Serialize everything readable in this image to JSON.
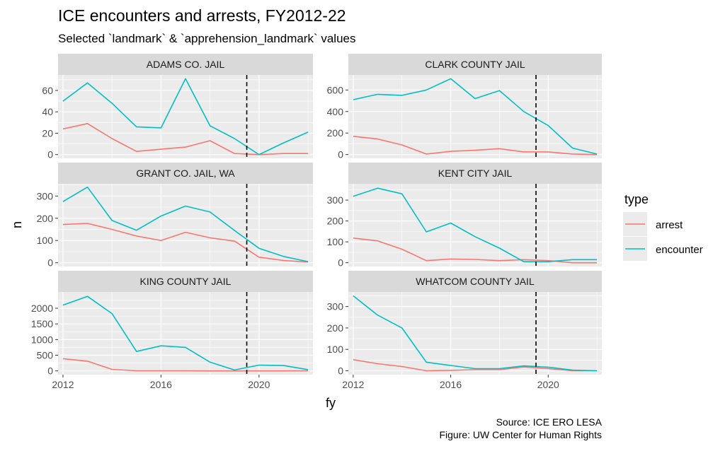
{
  "title": "ICE encounters and arrests, FY2012-22",
  "subtitle": "Selected `landmark` & `apprehension_landmark` values",
  "xlabel": "fy",
  "ylabel": "n",
  "caption": [
    "Source: ICE ERO LESA",
    "Figure: UW Center for Human Rights"
  ],
  "legend": {
    "title": "type",
    "position": "right",
    "items": [
      {
        "label": "arrest",
        "color": "#F8766D"
      },
      {
        "label": "encounter",
        "color": "#00BFC4"
      }
    ]
  },
  "colors": {
    "panel_bg": "#EBEBEB",
    "strip_bg": "#D9D9D9",
    "grid": "#FFFFFF",
    "arrest": "#F8766D",
    "encounter": "#00BFC4"
  },
  "chart_data": {
    "type": "line",
    "facet_layout": "3 rows x 2 columns",
    "grid": true,
    "x": [
      2012,
      2013,
      2014,
      2015,
      2016,
      2017,
      2018,
      2019,
      2020,
      2021,
      2022
    ],
    "x_ticks": [
      2012,
      2016,
      2020
    ],
    "xlim": [
      2011.8,
      2022.2
    ],
    "vline": {
      "x": 2019.5,
      "style": "dashed"
    },
    "panels": [
      {
        "strip": "ADAMS CO. JAIL",
        "ylim": [
          -3.5,
          74.5
        ],
        "y_ticks": [
          0,
          20,
          40,
          60
        ],
        "series": [
          {
            "name": "arrest",
            "values": [
              24,
              29,
              15,
              3,
              5,
              7,
              13,
              1,
              0,
              1,
              1
            ]
          },
          {
            "name": "encounter",
            "values": [
              50,
              67,
              48,
              26,
              25,
              71,
              27,
              15,
              0,
              11,
              21
            ]
          }
        ]
      },
      {
        "strip": "CLARK COUNTY JAIL",
        "ylim": [
          -35,
          740
        ],
        "y_ticks": [
          0,
          200,
          400,
          600
        ],
        "series": [
          {
            "name": "arrest",
            "values": [
              170,
              145,
              90,
              5,
              30,
              40,
              55,
              25,
              25,
              5,
              0
            ]
          },
          {
            "name": "encounter",
            "values": [
              510,
              560,
              550,
              600,
              705,
              520,
              595,
              400,
              270,
              60,
              5
            ]
          }
        ]
      },
      {
        "strip": "GRANT CO. JAIL, WA",
        "ylim": [
          -17,
          355
        ],
        "y_ticks": [
          0,
          100,
          200,
          300
        ],
        "series": [
          {
            "name": "arrest",
            "values": [
              172,
              177,
              150,
              120,
              100,
              137,
              112,
              97,
              25,
              10,
              3
            ]
          },
          {
            "name": "encounter",
            "values": [
              275,
              340,
              190,
              146,
              210,
              255,
              228,
              145,
              65,
              28,
              5
            ]
          }
        ]
      },
      {
        "strip": "KENT CITY JAIL",
        "ylim": [
          -18,
          378
        ],
        "y_ticks": [
          0,
          100,
          200,
          300
        ],
        "series": [
          {
            "name": "arrest",
            "values": [
              118,
              105,
              65,
              10,
              18,
              16,
              10,
              15,
              10,
              0,
              0
            ]
          },
          {
            "name": "encounter",
            "values": [
              318,
              357,
              330,
              148,
              190,
              125,
              70,
              5,
              5,
              15,
              15
            ]
          }
        ]
      },
      {
        "strip": "KING COUNTY JAIL",
        "ylim": [
          -120,
          2520
        ],
        "y_ticks": [
          0,
          500,
          1000,
          1500,
          2000
        ],
        "series": [
          {
            "name": "arrest",
            "values": [
              390,
              310,
              50,
              5,
              5,
              5,
              0,
              0,
              0,
              0,
              5
            ]
          },
          {
            "name": "encounter",
            "values": [
              2100,
              2380,
              1830,
              620,
              800,
              750,
              280,
              30,
              185,
              170,
              40
            ]
          }
        ]
      },
      {
        "strip": "WHATCOM COUNTY JAIL",
        "ylim": [
          -18,
          368
        ],
        "y_ticks": [
          0,
          100,
          200,
          300
        ],
        "series": [
          {
            "name": "arrest",
            "values": [
              52,
              33,
              20,
              0,
              2,
              5,
              5,
              18,
              10,
              0,
              0
            ]
          },
          {
            "name": "encounter",
            "values": [
              350,
              260,
              200,
              40,
              25,
              10,
              10,
              23,
              17,
              3,
              0
            ]
          }
        ]
      }
    ]
  }
}
